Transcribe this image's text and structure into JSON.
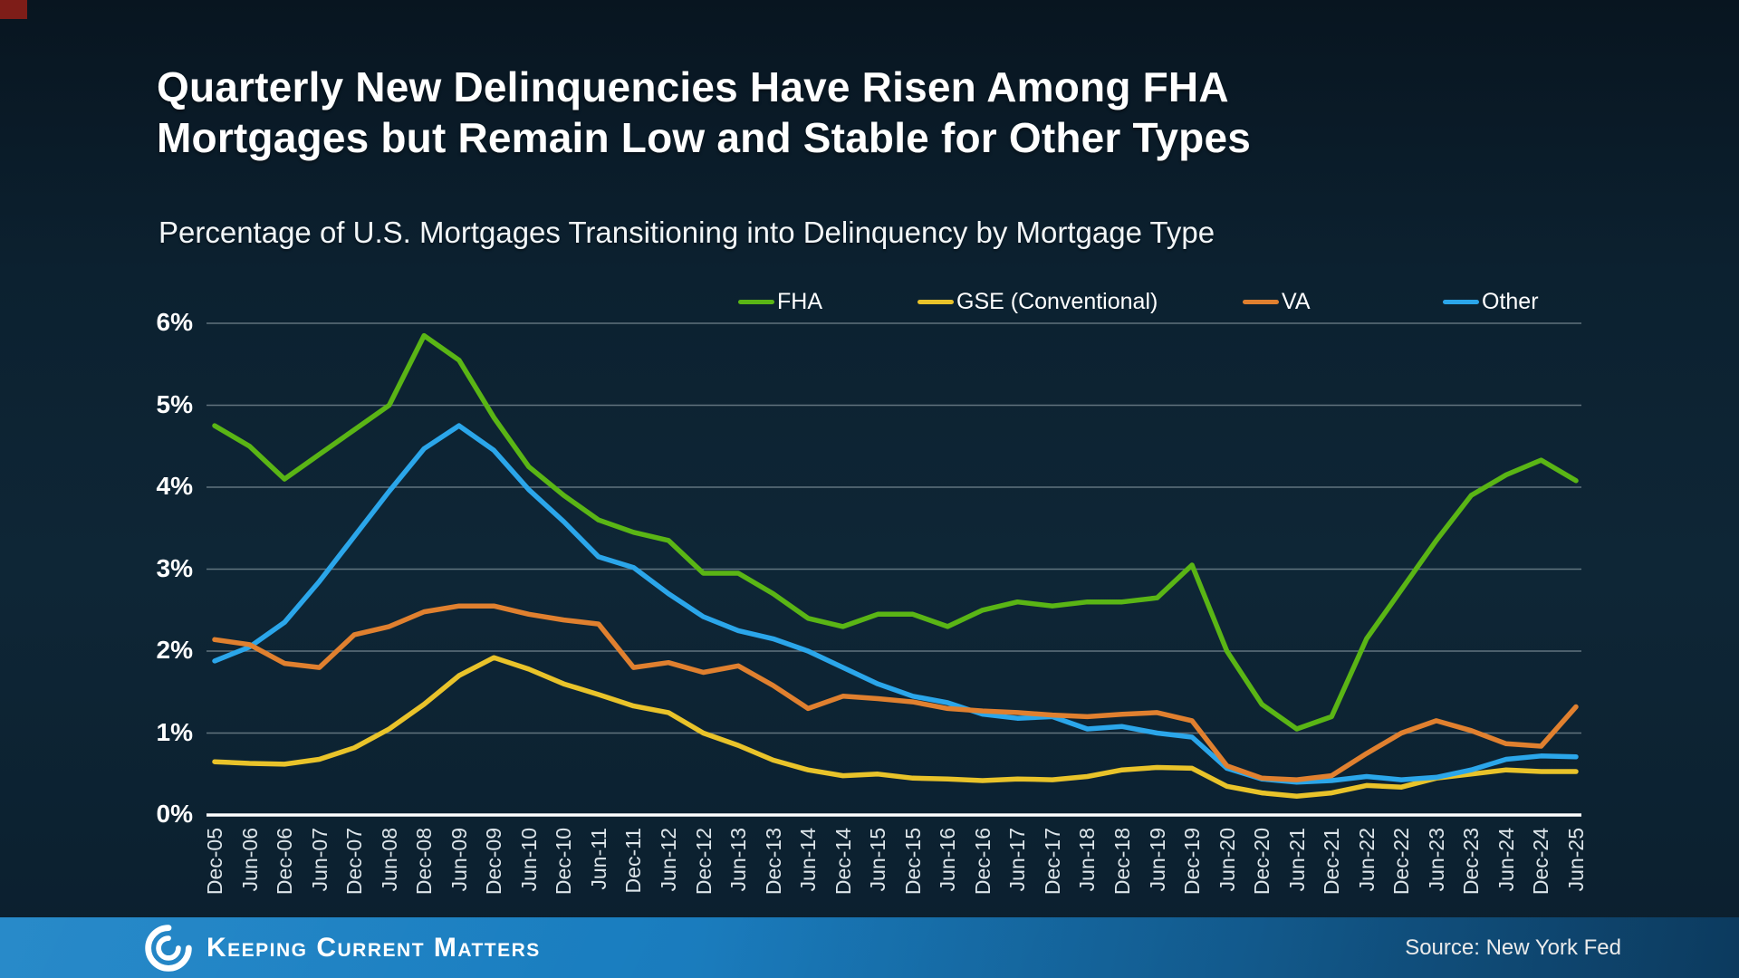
{
  "header": {
    "title_line1": "Quarterly New Delinquencies Have Risen Among FHA",
    "title_line2": "Mortgages but Remain Low and Stable for Other Types",
    "subtitle": "Percentage of U.S. Mortgages Transitioning into Delinquency by Mortgage Type"
  },
  "chart_data": {
    "type": "line",
    "title": "Quarterly New Delinquencies Have Risen Among FHA Mortgages but Remain Low and Stable for Other Types",
    "subtitle": "Percentage of U.S. Mortgages Transitioning into Delinquency by Mortgage Type",
    "xlabel": "",
    "ylabel": "",
    "ylim": [
      0,
      6
    ],
    "y_ticks": [
      "0%",
      "1%",
      "2%",
      "3%",
      "4%",
      "5%",
      "6%"
    ],
    "grid": true,
    "legend_position": "top",
    "categories": [
      "Dec-05",
      "Jun-06",
      "Dec-06",
      "Jun-07",
      "Dec-07",
      "Jun-08",
      "Dec-08",
      "Jun-09",
      "Dec-09",
      "Jun-10",
      "Dec-10",
      "Jun-11",
      "Dec-11",
      "Jun-12",
      "Dec-12",
      "Jun-13",
      "Dec-13",
      "Jun-14",
      "Dec-14",
      "Jun-15",
      "Dec-15",
      "Jun-16",
      "Dec-16",
      "Jun-17",
      "Dec-17",
      "Jun-18",
      "Dec-18",
      "Jun-19",
      "Dec-19",
      "Jun-20",
      "Dec-20",
      "Jun-21",
      "Dec-21",
      "Jun-22",
      "Dec-22",
      "Jun-23",
      "Dec-23",
      "Jun-24",
      "Dec-24",
      "Jun-25"
    ],
    "series": [
      {
        "name": "FHA",
        "color": "#5ab515",
        "values": [
          4.75,
          4.5,
          4.1,
          4.4,
          4.7,
          5.0,
          5.85,
          5.55,
          4.85,
          4.25,
          3.9,
          3.6,
          3.45,
          3.35,
          2.95,
          2.95,
          2.7,
          2.4,
          2.3,
          2.45,
          2.45,
          2.3,
          2.5,
          2.6,
          2.55,
          2.6,
          2.6,
          2.65,
          3.05,
          2.0,
          1.35,
          1.05,
          1.2,
          2.15,
          2.75,
          3.35,
          3.9,
          4.15,
          4.33,
          4.08
        ]
      },
      {
        "name": "GSE (Conventional)",
        "color": "#e9c32a",
        "values": [
          0.65,
          0.63,
          0.62,
          0.68,
          0.82,
          1.05,
          1.35,
          1.7,
          1.92,
          1.78,
          1.6,
          1.47,
          1.33,
          1.25,
          1.0,
          0.85,
          0.67,
          0.55,
          0.48,
          0.5,
          0.45,
          0.44,
          0.42,
          0.44,
          0.43,
          0.47,
          0.55,
          0.58,
          0.57,
          0.35,
          0.27,
          0.23,
          0.27,
          0.36,
          0.34,
          0.45,
          0.5,
          0.55,
          0.53,
          0.53
        ]
      },
      {
        "name": "VA",
        "color": "#e0802f",
        "values": [
          2.14,
          2.08,
          1.85,
          1.8,
          2.2,
          2.3,
          2.48,
          2.55,
          2.55,
          2.45,
          2.38,
          2.33,
          1.8,
          1.86,
          1.74,
          1.82,
          1.58,
          1.3,
          1.45,
          1.42,
          1.38,
          1.3,
          1.27,
          1.25,
          1.22,
          1.2,
          1.23,
          1.25,
          1.15,
          0.6,
          0.45,
          0.43,
          0.48,
          0.75,
          1.0,
          1.15,
          1.03,
          0.87,
          0.84,
          1.32
        ]
      },
      {
        "name": "Other",
        "color": "#2ba6ea",
        "values": [
          1.88,
          2.05,
          2.35,
          2.85,
          3.4,
          3.95,
          4.47,
          4.75,
          4.45,
          3.97,
          3.58,
          3.15,
          3.02,
          2.7,
          2.42,
          2.25,
          2.15,
          2.0,
          1.8,
          1.6,
          1.45,
          1.37,
          1.23,
          1.18,
          1.2,
          1.05,
          1.08,
          1.0,
          0.95,
          0.57,
          0.44,
          0.4,
          0.42,
          0.47,
          0.43,
          0.46,
          0.55,
          0.68,
          0.72,
          0.71
        ]
      }
    ]
  },
  "colors": {
    "background": "#0c2130",
    "gridline": "rgba(200,212,218,0.45)",
    "baseline": "#ffffff",
    "footer_left": "#1b83c6",
    "footer_right": "#0d3f66",
    "corner_accent": "#7e1d18"
  },
  "footer": {
    "brand": "Keeping Current Matters",
    "source": "Source: New York Fed",
    "logo": "kcm-swirl-icon"
  }
}
